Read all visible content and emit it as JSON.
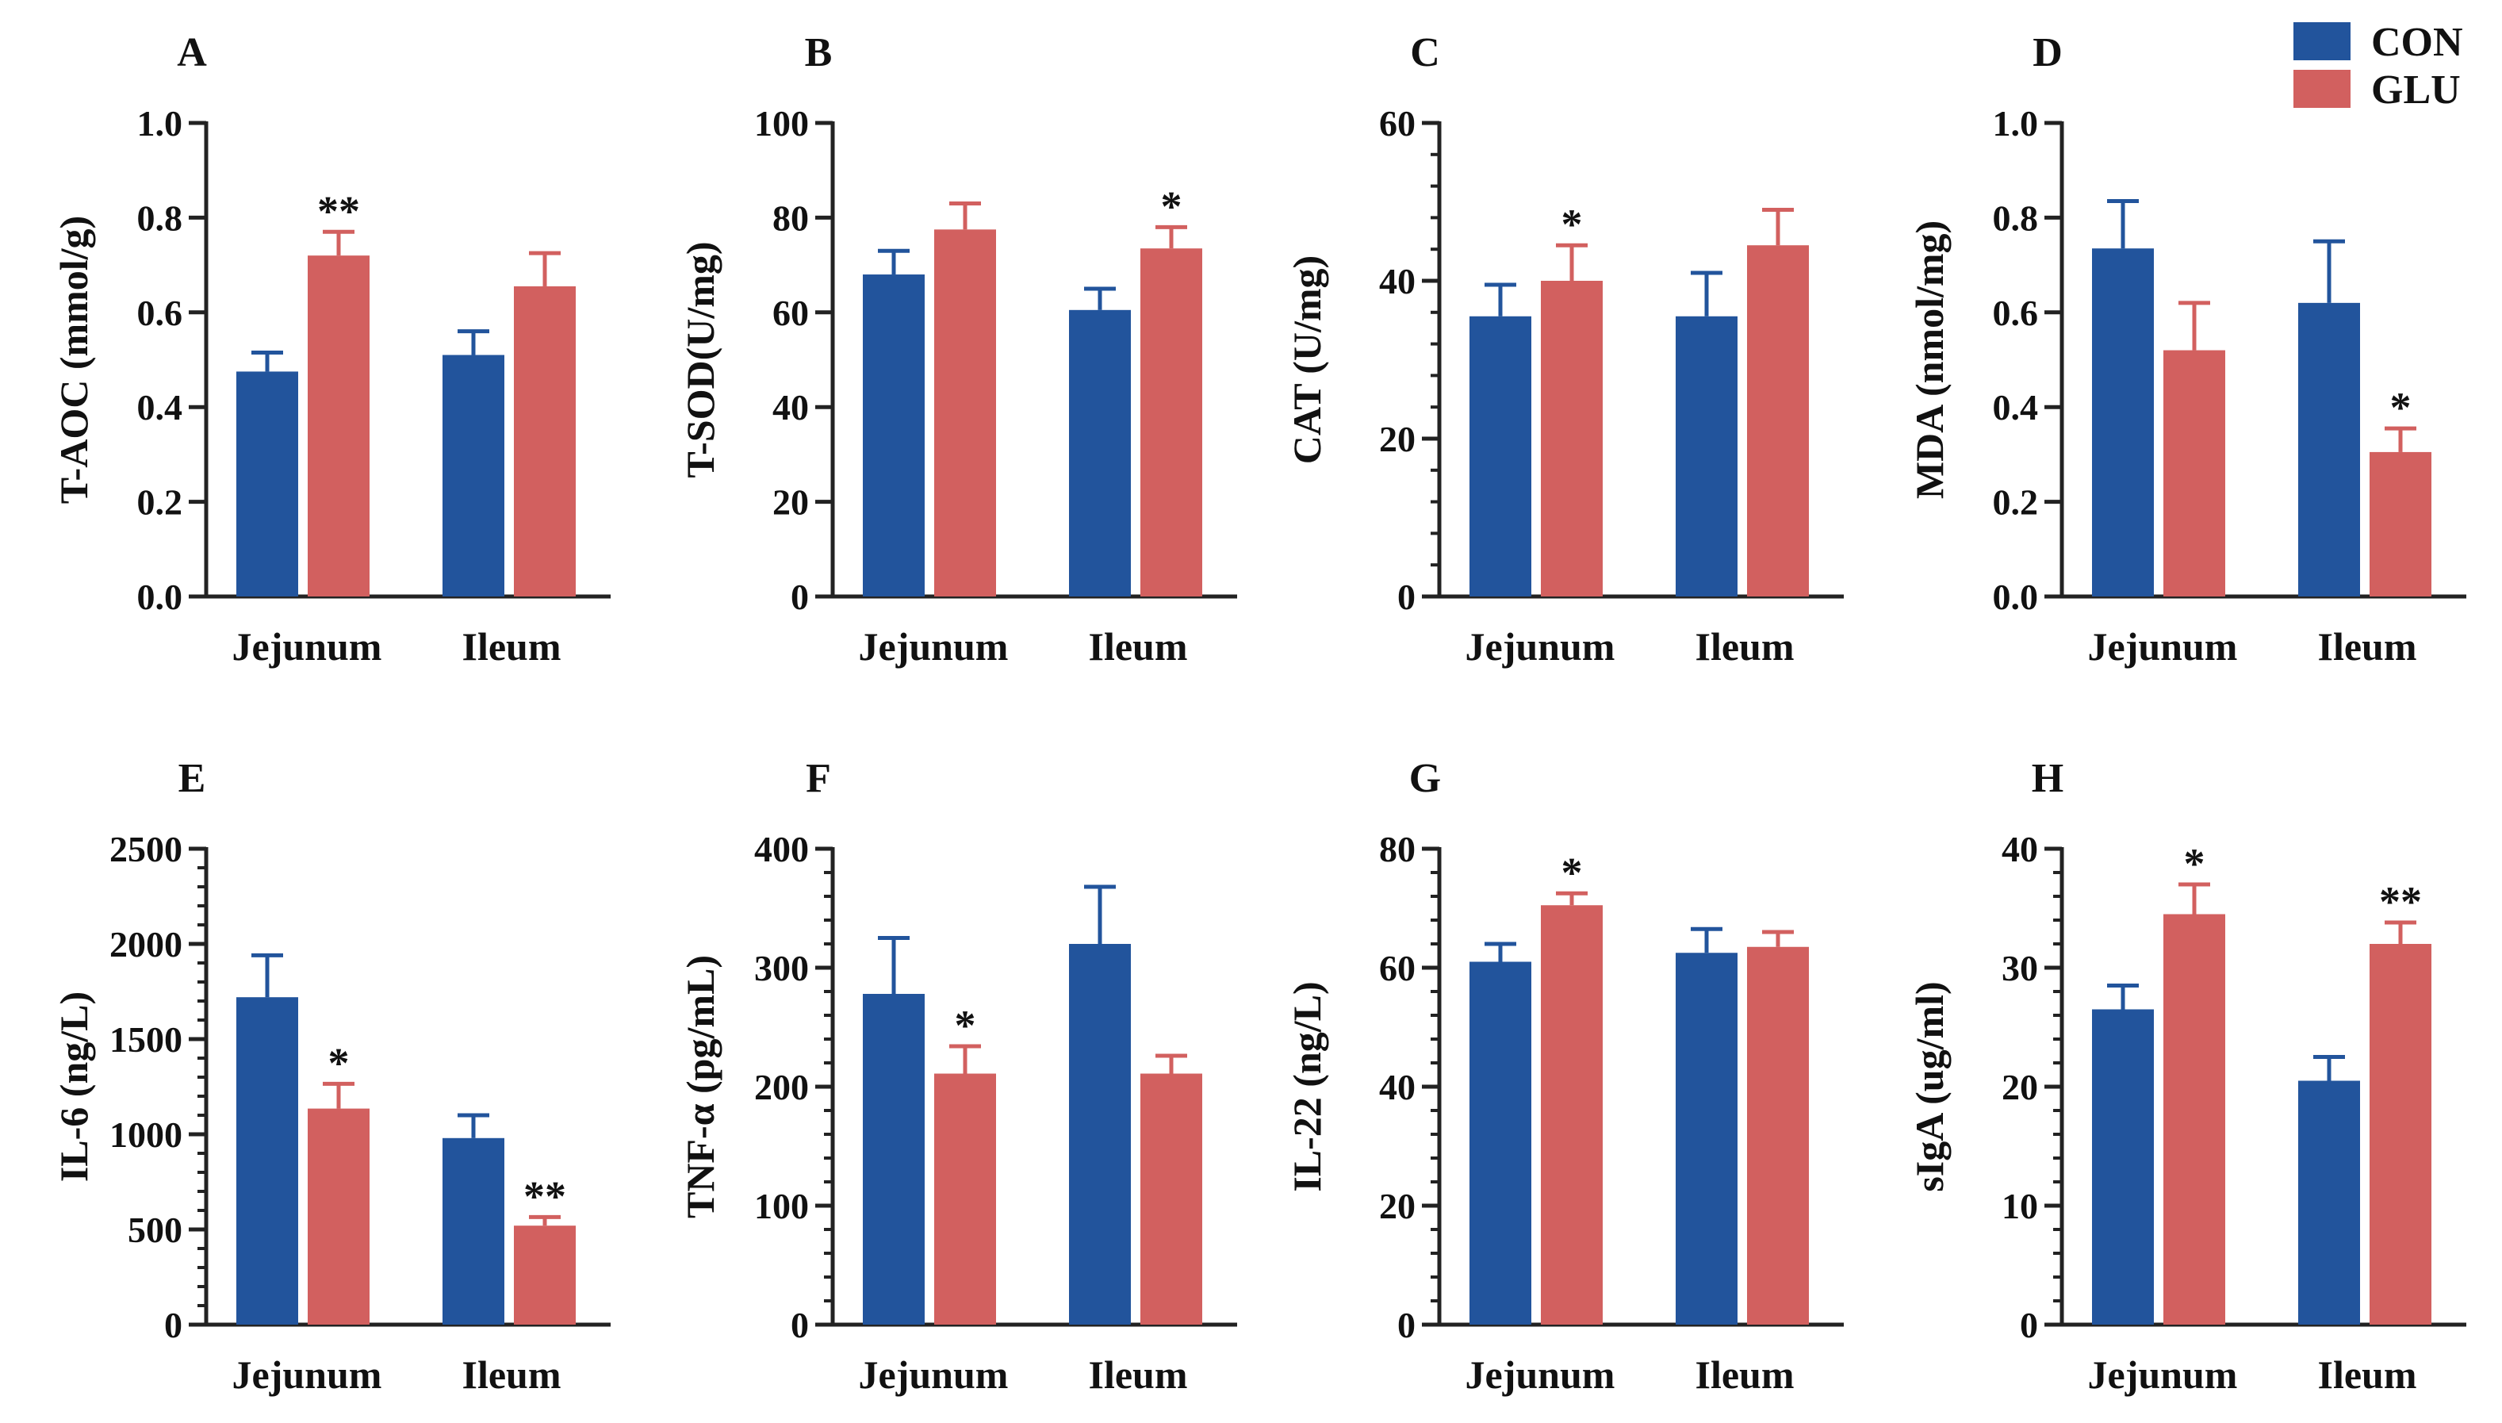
{
  "figure": {
    "legend": [
      {
        "label": "CON",
        "color": "#22549c"
      },
      {
        "label": "GLU",
        "color": "#d2605f"
      }
    ],
    "categories": [
      "Jejunum",
      "Ileum"
    ]
  },
  "chart_data": [
    {
      "panel": "A",
      "type": "bar",
      "ylabel": "T-AOC (mmol/g)",
      "ylim": [
        0,
        1.0
      ],
      "yticks": [
        "0.0",
        "0.2",
        "0.4",
        "0.6",
        "0.8",
        "1.0"
      ],
      "minor_ticks": false,
      "categories": [
        "Jejunum",
        "Ileum"
      ],
      "series": [
        {
          "name": "CON",
          "values": [
            0.475,
            0.51
          ],
          "errors": [
            0.04,
            0.05
          ],
          "marks": [
            "",
            ""
          ]
        },
        {
          "name": "GLU",
          "values": [
            0.72,
            0.655
          ],
          "errors": [
            0.05,
            0.07
          ],
          "marks": [
            "**",
            ""
          ]
        }
      ]
    },
    {
      "panel": "B",
      "type": "bar",
      "ylabel": "T-SOD(U/mg)",
      "ylim": [
        0,
        100
      ],
      "yticks": [
        "0",
        "20",
        "40",
        "60",
        "80",
        "100"
      ],
      "minor_ticks": false,
      "categories": [
        "Jejunum",
        "Ileum"
      ],
      "series": [
        {
          "name": "CON",
          "values": [
            68,
            60.5
          ],
          "errors": [
            5,
            4.5
          ],
          "marks": [
            "",
            ""
          ]
        },
        {
          "name": "GLU",
          "values": [
            77.5,
            73.5
          ],
          "errors": [
            5.5,
            4.5
          ],
          "marks": [
            "",
            "*"
          ]
        }
      ]
    },
    {
      "panel": "C",
      "type": "bar",
      "ylabel": "CAT (U/mg)",
      "ylim": [
        0,
        60
      ],
      "yticks": [
        "0",
        "20",
        "40",
        "60"
      ],
      "minor_ticks": true,
      "categories": [
        "Jejunum",
        "Ileum"
      ],
      "series": [
        {
          "name": "CON",
          "values": [
            35.5,
            35.5
          ],
          "errors": [
            4,
            5.5
          ],
          "marks": [
            "",
            ""
          ]
        },
        {
          "name": "GLU",
          "values": [
            40,
            44.5
          ],
          "errors": [
            4.5,
            4.5
          ],
          "marks": [
            "*",
            ""
          ]
        }
      ]
    },
    {
      "panel": "D",
      "type": "bar",
      "ylabel": "MDA (nmol/mg)",
      "ylim": [
        0,
        1.0
      ],
      "yticks": [
        "0.0",
        "0.2",
        "0.4",
        "0.6",
        "0.8",
        "1.0"
      ],
      "minor_ticks": false,
      "categories": [
        "Jejunum",
        "Ileum"
      ],
      "series": [
        {
          "name": "CON",
          "values": [
            0.735,
            0.62
          ],
          "errors": [
            0.1,
            0.13
          ],
          "marks": [
            "",
            ""
          ]
        },
        {
          "name": "GLU",
          "values": [
            0.52,
            0.305
          ],
          "errors": [
            0.1,
            0.05
          ],
          "marks": [
            "",
            "*"
          ]
        }
      ]
    },
    {
      "panel": "E",
      "type": "bar",
      "ylabel": "IL-6 (ng/L)",
      "ylim": [
        0,
        2500
      ],
      "yticks": [
        "0",
        "500",
        "1000",
        "1500",
        "2000",
        "2500"
      ],
      "minor_ticks": true,
      "categories": [
        "Jejunum",
        "Ileum"
      ],
      "series": [
        {
          "name": "CON",
          "values": [
            1720,
            980
          ],
          "errors": [
            220,
            120
          ],
          "marks": [
            "",
            ""
          ]
        },
        {
          "name": "GLU",
          "values": [
            1135,
            520
          ],
          "errors": [
            130,
            45
          ],
          "marks": [
            "*",
            "**"
          ]
        }
      ]
    },
    {
      "panel": "F",
      "type": "bar",
      "ylabel": "TNF-α (pg/mL)",
      "ylim": [
        0,
        400
      ],
      "yticks": [
        "0",
        "100",
        "200",
        "300",
        "400"
      ],
      "minor_ticks": true,
      "categories": [
        "Jejunum",
        "Ileum"
      ],
      "series": [
        {
          "name": "CON",
          "values": [
            278,
            320
          ],
          "errors": [
            47,
            48
          ],
          "marks": [
            "",
            ""
          ]
        },
        {
          "name": "GLU",
          "values": [
            211,
            211
          ],
          "errors": [
            23,
            15
          ],
          "marks": [
            "*",
            ""
          ]
        }
      ]
    },
    {
      "panel": "G",
      "type": "bar",
      "ylabel": "IL-22 (ng/L)",
      "ylim": [
        0,
        80
      ],
      "yticks": [
        "0",
        "20",
        "40",
        "60",
        "80"
      ],
      "minor_ticks": true,
      "categories": [
        "Jejunum",
        "Ileum"
      ],
      "series": [
        {
          "name": "CON",
          "values": [
            61,
            62.5
          ],
          "errors": [
            3,
            4
          ],
          "marks": [
            "",
            ""
          ]
        },
        {
          "name": "GLU",
          "values": [
            70.5,
            63.5
          ],
          "errors": [
            2,
            2.5
          ],
          "marks": [
            "*",
            ""
          ]
        }
      ]
    },
    {
      "panel": "H",
      "type": "bar",
      "ylabel": "sIgA (ug/ml)",
      "ylim": [
        0,
        40
      ],
      "yticks": [
        "0",
        "10",
        "20",
        "30",
        "40"
      ],
      "minor_ticks": true,
      "categories": [
        "Jejunum",
        "Ileum"
      ],
      "series": [
        {
          "name": "CON",
          "values": [
            26.5,
            20.5
          ],
          "errors": [
            2,
            2
          ],
          "marks": [
            "",
            ""
          ]
        },
        {
          "name": "GLU",
          "values": [
            34.5,
            32
          ],
          "errors": [
            2.5,
            1.8
          ],
          "marks": [
            "*",
            "**"
          ]
        }
      ]
    }
  ]
}
